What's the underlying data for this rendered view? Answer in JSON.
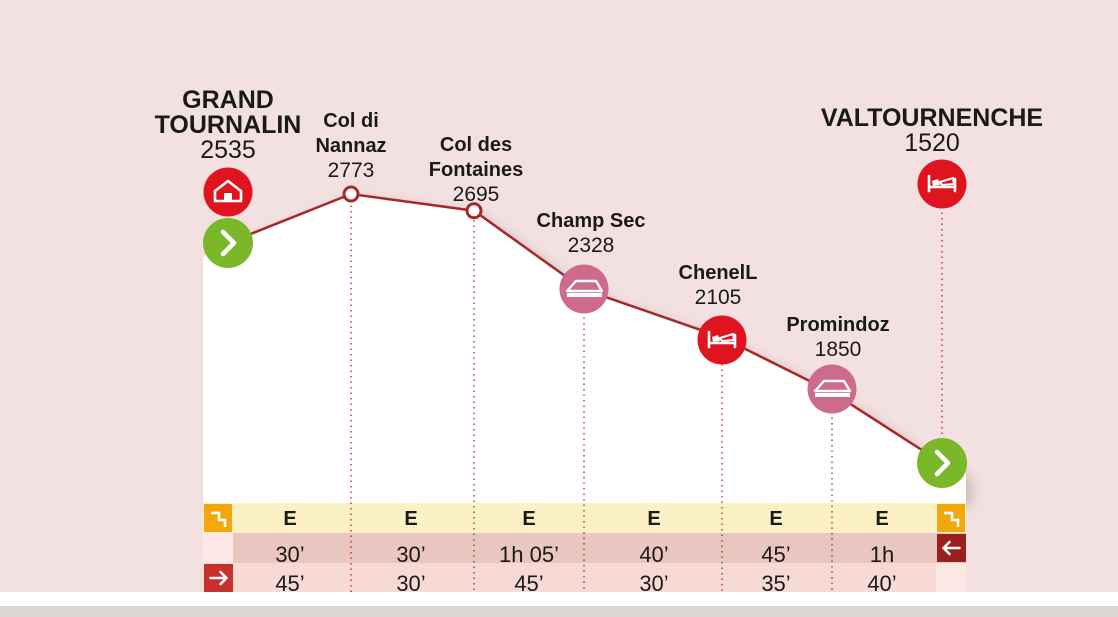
{
  "colors": {
    "background": "#f3e1e1",
    "profile_line": "#a8282a",
    "profile_fill": "#ffffff",
    "icon_red": "#e0141e",
    "icon_pink": "#cc6b8b",
    "icon_green": "#7ab829",
    "difficulty_row": "#fcf1c4",
    "time_row_1": "#e9c6bf",
    "time_row_2": "#f6dad3",
    "arrow_yellow": "#f2a80d",
    "arrow_red": "#c8302e",
    "arrow_darkred": "#9b1f1f"
  },
  "chart_data": {
    "type": "line",
    "subtype": "elevation-profile",
    "points": [
      {
        "name": "GRAND\nTOURNALIN",
        "elevation": 2535,
        "icon": "hut-icon",
        "icon_style": "red",
        "start_marker": "start-arrow-icon"
      },
      {
        "name": "Col di\nNannaz",
        "elevation": 2773,
        "icon": "pass-marker"
      },
      {
        "name": "Col des\nFontaines",
        "elevation": 2695,
        "icon": "pass-marker"
      },
      {
        "name": "Champ Sec",
        "elevation": 2328,
        "icon": "alpine-pasture-icon",
        "icon_style": "pink"
      },
      {
        "name": "ChenelL",
        "elevation": 2105,
        "icon": "bed-icon",
        "icon_style": "red"
      },
      {
        "name": "Promindoz",
        "elevation": 1850,
        "icon": "alpine-pasture-icon",
        "icon_style": "pink"
      },
      {
        "name": "VALTOURNENCHE",
        "elevation": 1520,
        "icon": "bed-icon",
        "icon_style": "red",
        "end_marker": "end-arrow-icon"
      }
    ],
    "segments": [
      {
        "difficulty": "E",
        "time_forward": "30’",
        "time_reverse": "45’"
      },
      {
        "difficulty": "E",
        "time_forward": "30’",
        "time_reverse": "30’"
      },
      {
        "difficulty": "E",
        "time_forward": "1h 05’",
        "time_reverse": "45’"
      },
      {
        "difficulty": "E",
        "time_forward": "40’",
        "time_reverse": "30’"
      },
      {
        "difficulty": "E",
        "time_forward": "45’",
        "time_reverse": "35’"
      },
      {
        "difficulty": "E",
        "time_forward": "1h",
        "time_reverse": "40’"
      }
    ],
    "legend_icons": {
      "difficulty_left": "ascent-step-icon",
      "difficulty_right": "ascent-step-icon",
      "forward_direction": "arrow-left-icon",
      "reverse_direction": "arrow-right-icon"
    }
  }
}
